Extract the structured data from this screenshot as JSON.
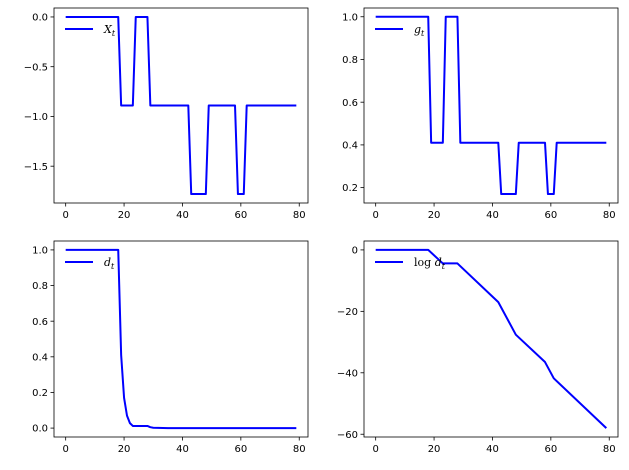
{
  "chart_data": [
    {
      "type": "line",
      "xlim": [
        -4,
        83
      ],
      "ylim": [
        -1.87,
        0.09
      ],
      "xticks": [
        0,
        20,
        40,
        60,
        80
      ],
      "xtick_labels": [
        "0",
        "20",
        "40",
        "60",
        "80"
      ],
      "yticks": [
        0.0,
        -0.5,
        -1.0,
        -1.5
      ],
      "ytick_labels": [
        "0.0",
        "−0.5",
        "−1.0",
        "−1.5"
      ],
      "legend": {
        "position": "top-left",
        "main": "X",
        "sub": "t",
        "prefix": ""
      },
      "series": [
        {
          "name": "X_t",
          "color": "#0000ff",
          "x": [
            0,
            18,
            19,
            23,
            24,
            28,
            29,
            42,
            43,
            48,
            49,
            58,
            59,
            61,
            62,
            79
          ],
          "y": [
            0,
            0,
            -0.89,
            -0.89,
            0,
            0,
            -0.89,
            -0.89,
            -1.78,
            -1.78,
            -0.89,
            -0.89,
            -1.78,
            -1.78,
            -0.89,
            -0.89
          ]
        }
      ]
    },
    {
      "type": "line",
      "xlim": [
        -4,
        83
      ],
      "ylim": [
        0.128,
        1.041
      ],
      "xticks": [
        0,
        20,
        40,
        60,
        80
      ],
      "xtick_labels": [
        "0",
        "20",
        "40",
        "60",
        "80"
      ],
      "yticks": [
        0.2,
        0.4,
        0.6,
        0.8,
        1.0
      ],
      "ytick_labels": [
        "0.2",
        "0.4",
        "0.6",
        "0.8",
        "1.0"
      ],
      "legend": {
        "position": "top-left",
        "main": "g",
        "sub": "t",
        "prefix": ""
      },
      "series": [
        {
          "name": "g_t",
          "color": "#0000ff",
          "x": [
            0,
            18,
            19,
            23,
            24,
            28,
            29,
            42,
            43,
            48,
            49,
            58,
            59,
            61,
            62,
            79
          ],
          "y": [
            1,
            1,
            0.41,
            0.41,
            1,
            1,
            0.41,
            0.41,
            0.17,
            0.17,
            0.41,
            0.41,
            0.17,
            0.17,
            0.41,
            0.41
          ]
        }
      ]
    },
    {
      "type": "line",
      "xlim": [
        -4,
        83
      ],
      "ylim": [
        -0.05,
        1.05
      ],
      "xticks": [
        0,
        20,
        40,
        60,
        80
      ],
      "xtick_labels": [
        "0",
        "20",
        "40",
        "60",
        "80"
      ],
      "yticks": [
        0.0,
        0.2,
        0.4,
        0.6,
        0.8,
        1.0
      ],
      "ytick_labels": [
        "0.0",
        "0.2",
        "0.4",
        "0.6",
        "0.8",
        "1.0"
      ],
      "legend": {
        "position": "top-left",
        "main": "d",
        "sub": "t",
        "prefix": ""
      },
      "series": [
        {
          "name": "d_t",
          "color": "#0000ff",
          "x": [
            0,
            18,
            19,
            20,
            21,
            22,
            23,
            24,
            28,
            29,
            30,
            35,
            79
          ],
          "y": [
            1,
            1,
            0.41,
            0.17,
            0.07,
            0.028,
            0.012,
            0.012,
            0.012,
            0.005,
            0.002,
            0,
            0
          ]
        }
      ]
    },
    {
      "type": "line",
      "xlim": [
        -4,
        83
      ],
      "ylim": [
        -60.9,
        2.9
      ],
      "xticks": [
        0,
        20,
        40,
        60,
        80
      ],
      "xtick_labels": [
        "0",
        "20",
        "40",
        "60",
        "80"
      ],
      "yticks": [
        0,
        -20,
        -40,
        -60
      ],
      "ytick_labels": [
        "0",
        "−20",
        "−40",
        "−60"
      ],
      "legend": {
        "position": "top-left",
        "main": "d",
        "sub": "t",
        "prefix": "log"
      },
      "series": [
        {
          "name": "log d_t",
          "color": "#0000ff",
          "x": [
            0,
            18,
            23,
            24,
            28,
            42,
            48,
            58,
            61,
            79
          ],
          "y": [
            0,
            0,
            -4.4,
            -4.4,
            -4.4,
            -17,
            -27.6,
            -36.5,
            -41.8,
            -58
          ]
        }
      ]
    }
  ]
}
